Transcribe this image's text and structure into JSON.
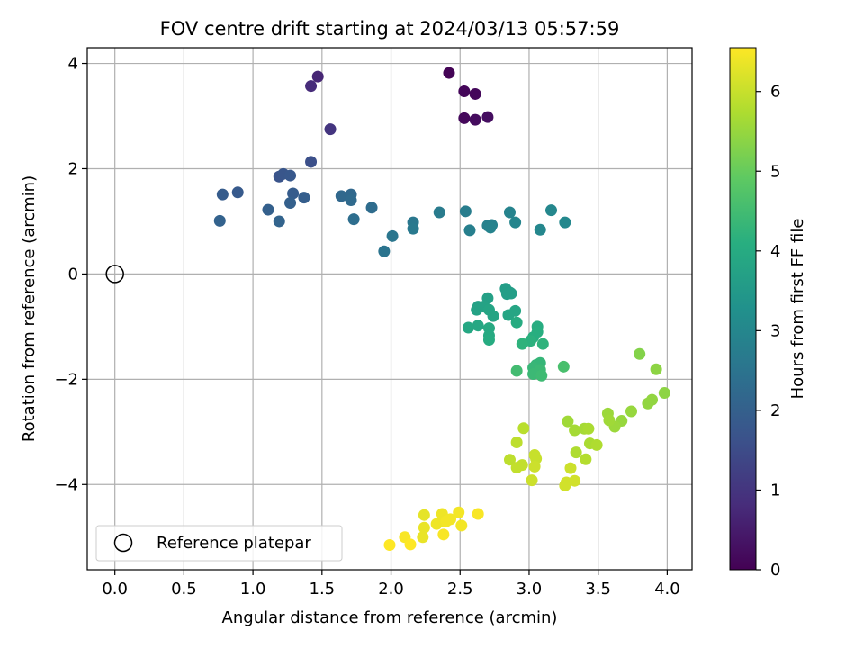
{
  "chart_data": {
    "type": "scatter",
    "title": "FOV centre drift starting at 2024/03/13 05:57:59",
    "xlabel": "Angular distance from reference (arcmin)",
    "ylabel": "Rotation from reference (arcmin)",
    "xlim": [
      -0.2,
      4.18
    ],
    "ylim": [
      -5.62,
      4.3
    ],
    "xticks": [
      0.0,
      0.5,
      1.0,
      1.5,
      2.0,
      2.5,
      3.0,
      3.5,
      4.0
    ],
    "xtick_labels": [
      "0.0",
      "0.5",
      "1.0",
      "1.5",
      "2.0",
      "2.5",
      "3.0",
      "3.5",
      "4.0"
    ],
    "yticks": [
      -4,
      -2,
      0,
      2,
      4
    ],
    "ytick_labels": [
      "−4",
      "−2",
      "0",
      "2",
      "4"
    ],
    "grid": true,
    "legend": {
      "placement": "lower-left",
      "entries": [
        "Reference platepar"
      ]
    },
    "reference_point": {
      "x": 0.0,
      "y": 0.0
    },
    "colorbar": {
      "label": "Hours from first FF file",
      "range": [
        0,
        6.55
      ],
      "ticks": [
        0,
        1,
        2,
        3,
        4,
        5,
        6
      ],
      "colormap": "viridis"
    },
    "points": [
      {
        "x": 2.42,
        "y": 3.82,
        "c": 0.05
      },
      {
        "x": 2.53,
        "y": 3.47,
        "c": 0.1
      },
      {
        "x": 2.61,
        "y": 3.42,
        "c": 0.12
      },
      {
        "x": 2.53,
        "y": 2.96,
        "c": 0.15
      },
      {
        "x": 2.61,
        "y": 2.93,
        "c": 0.2
      },
      {
        "x": 2.7,
        "y": 2.98,
        "c": 0.25
      },
      {
        "x": 1.47,
        "y": 3.75,
        "c": 0.7
      },
      {
        "x": 1.42,
        "y": 3.57,
        "c": 0.8
      },
      {
        "x": 1.56,
        "y": 2.75,
        "c": 1.0
      },
      {
        "x": 1.42,
        "y": 2.13,
        "c": 1.6
      },
      {
        "x": 1.19,
        "y": 1.85,
        "c": 1.7
      },
      {
        "x": 1.22,
        "y": 1.9,
        "c": 1.75
      },
      {
        "x": 1.27,
        "y": 1.87,
        "c": 1.8
      },
      {
        "x": 0.89,
        "y": 1.55,
        "c": 1.85
      },
      {
        "x": 0.78,
        "y": 1.51,
        "c": 1.9
      },
      {
        "x": 1.29,
        "y": 1.53,
        "c": 1.9
      },
      {
        "x": 1.37,
        "y": 1.45,
        "c": 1.95
      },
      {
        "x": 1.27,
        "y": 1.35,
        "c": 2.0
      },
      {
        "x": 1.11,
        "y": 1.22,
        "c": 2.0
      },
      {
        "x": 0.76,
        "y": 1.01,
        "c": 2.05
      },
      {
        "x": 1.19,
        "y": 1.0,
        "c": 2.1
      },
      {
        "x": 1.64,
        "y": 1.48,
        "c": 2.2
      },
      {
        "x": 1.71,
        "y": 1.51,
        "c": 2.2
      },
      {
        "x": 1.71,
        "y": 1.4,
        "c": 2.25
      },
      {
        "x": 1.86,
        "y": 1.26,
        "c": 2.3
      },
      {
        "x": 1.73,
        "y": 1.04,
        "c": 2.35
      },
      {
        "x": 1.95,
        "y": 0.43,
        "c": 2.5
      },
      {
        "x": 2.01,
        "y": 0.72,
        "c": 2.55
      },
      {
        "x": 2.16,
        "y": 0.98,
        "c": 2.6
      },
      {
        "x": 2.16,
        "y": 0.86,
        "c": 2.65
      },
      {
        "x": 2.35,
        "y": 1.17,
        "c": 2.7
      },
      {
        "x": 2.54,
        "y": 1.19,
        "c": 2.75
      },
      {
        "x": 2.57,
        "y": 0.83,
        "c": 2.8
      },
      {
        "x": 2.7,
        "y": 0.92,
        "c": 2.85
      },
      {
        "x": 2.73,
        "y": 0.93,
        "c": 2.85
      },
      {
        "x": 2.72,
        "y": 0.88,
        "c": 2.9
      },
      {
        "x": 2.86,
        "y": 1.17,
        "c": 2.9
      },
      {
        "x": 2.9,
        "y": 0.98,
        "c": 2.95
      },
      {
        "x": 3.08,
        "y": 0.84,
        "c": 3.0
      },
      {
        "x": 3.16,
        "y": 1.21,
        "c": 3.0
      },
      {
        "x": 3.26,
        "y": 0.98,
        "c": 3.05
      },
      {
        "x": 2.83,
        "y": -0.28,
        "c": 3.6
      },
      {
        "x": 2.86,
        "y": -0.35,
        "c": 3.6
      },
      {
        "x": 2.84,
        "y": -0.38,
        "c": 3.65
      },
      {
        "x": 2.87,
        "y": -0.37,
        "c": 3.65
      },
      {
        "x": 2.7,
        "y": -0.46,
        "c": 3.7
      },
      {
        "x": 2.63,
        "y": -0.62,
        "c": 3.7
      },
      {
        "x": 2.62,
        "y": -0.68,
        "c": 3.75
      },
      {
        "x": 2.67,
        "y": -0.62,
        "c": 3.75
      },
      {
        "x": 2.71,
        "y": -0.68,
        "c": 3.8
      },
      {
        "x": 2.74,
        "y": -0.8,
        "c": 3.8
      },
      {
        "x": 2.85,
        "y": -0.78,
        "c": 3.85
      },
      {
        "x": 2.9,
        "y": -0.7,
        "c": 3.85
      },
      {
        "x": 2.56,
        "y": -1.02,
        "c": 3.9
      },
      {
        "x": 2.63,
        "y": -0.98,
        "c": 3.9
      },
      {
        "x": 2.71,
        "y": -1.03,
        "c": 3.95
      },
      {
        "x": 2.71,
        "y": -1.17,
        "c": 3.95
      },
      {
        "x": 2.71,
        "y": -1.25,
        "c": 4.0
      },
      {
        "x": 2.91,
        "y": -0.92,
        "c": 4.0
      },
      {
        "x": 3.06,
        "y": -1.0,
        "c": 4.05
      },
      {
        "x": 3.06,
        "y": -1.1,
        "c": 4.1
      },
      {
        "x": 3.03,
        "y": -1.2,
        "c": 4.1
      },
      {
        "x": 3.01,
        "y": -1.27,
        "c": 4.15
      },
      {
        "x": 3.1,
        "y": -1.33,
        "c": 4.2
      },
      {
        "x": 2.95,
        "y": -1.33,
        "c": 4.2
      },
      {
        "x": 3.05,
        "y": -1.73,
        "c": 4.3
      },
      {
        "x": 3.08,
        "y": -1.69,
        "c": 4.3
      },
      {
        "x": 3.03,
        "y": -1.78,
        "c": 4.35
      },
      {
        "x": 3.08,
        "y": -1.82,
        "c": 4.4
      },
      {
        "x": 3.03,
        "y": -1.9,
        "c": 4.4
      },
      {
        "x": 3.09,
        "y": -1.93,
        "c": 4.45
      },
      {
        "x": 2.91,
        "y": -1.84,
        "c": 4.5
      },
      {
        "x": 3.25,
        "y": -1.76,
        "c": 4.6
      },
      {
        "x": 3.8,
        "y": -1.52,
        "c": 5.3
      },
      {
        "x": 3.92,
        "y": -1.81,
        "c": 5.4
      },
      {
        "x": 3.98,
        "y": -2.26,
        "c": 5.4
      },
      {
        "x": 3.89,
        "y": -2.39,
        "c": 5.45
      },
      {
        "x": 3.86,
        "y": -2.46,
        "c": 5.45
      },
      {
        "x": 3.74,
        "y": -2.61,
        "c": 5.5
      },
      {
        "x": 3.67,
        "y": -2.79,
        "c": 5.5
      },
      {
        "x": 3.62,
        "y": -2.9,
        "c": 5.55
      },
      {
        "x": 3.57,
        "y": -2.65,
        "c": 5.55
      },
      {
        "x": 3.58,
        "y": -2.78,
        "c": 5.6
      },
      {
        "x": 3.28,
        "y": -2.8,
        "c": 5.6
      },
      {
        "x": 3.33,
        "y": -2.97,
        "c": 5.65
      },
      {
        "x": 3.4,
        "y": -2.94,
        "c": 5.65
      },
      {
        "x": 3.43,
        "y": -2.94,
        "c": 5.7
      },
      {
        "x": 3.44,
        "y": -3.22,
        "c": 5.7
      },
      {
        "x": 3.49,
        "y": -3.25,
        "c": 5.75
      },
      {
        "x": 3.34,
        "y": -3.39,
        "c": 5.75
      },
      {
        "x": 3.41,
        "y": -3.52,
        "c": 5.8
      },
      {
        "x": 2.96,
        "y": -2.93,
        "c": 5.85
      },
      {
        "x": 2.91,
        "y": -3.2,
        "c": 5.9
      },
      {
        "x": 2.86,
        "y": -3.53,
        "c": 5.9
      },
      {
        "x": 2.91,
        "y": -3.68,
        "c": 5.95
      },
      {
        "x": 2.95,
        "y": -3.63,
        "c": 5.95
      },
      {
        "x": 3.04,
        "y": -3.44,
        "c": 6.0
      },
      {
        "x": 3.05,
        "y": -3.51,
        "c": 6.0
      },
      {
        "x": 3.04,
        "y": -3.66,
        "c": 6.05
      },
      {
        "x": 3.02,
        "y": -3.92,
        "c": 6.05
      },
      {
        "x": 3.3,
        "y": -3.69,
        "c": 6.05
      },
      {
        "x": 3.27,
        "y": -3.96,
        "c": 6.1
      },
      {
        "x": 3.26,
        "y": -4.02,
        "c": 6.1
      },
      {
        "x": 3.33,
        "y": -3.93,
        "c": 6.1
      },
      {
        "x": 2.24,
        "y": -4.58,
        "c": 6.3
      },
      {
        "x": 2.24,
        "y": -4.82,
        "c": 6.35
      },
      {
        "x": 2.23,
        "y": -5.0,
        "c": 6.35
      },
      {
        "x": 2.33,
        "y": -4.75,
        "c": 6.4
      },
      {
        "x": 2.37,
        "y": -4.56,
        "c": 6.4
      },
      {
        "x": 2.38,
        "y": -4.7,
        "c": 6.4
      },
      {
        "x": 2.4,
        "y": -4.7,
        "c": 6.45
      },
      {
        "x": 2.43,
        "y": -4.66,
        "c": 6.45
      },
      {
        "x": 2.49,
        "y": -4.53,
        "c": 6.45
      },
      {
        "x": 2.51,
        "y": -4.78,
        "c": 6.45
      },
      {
        "x": 2.63,
        "y": -4.56,
        "c": 6.5
      },
      {
        "x": 2.38,
        "y": -4.95,
        "c": 6.5
      },
      {
        "x": 2.1,
        "y": -5.0,
        "c": 6.5
      },
      {
        "x": 2.14,
        "y": -5.14,
        "c": 6.55
      },
      {
        "x": 1.99,
        "y": -5.15,
        "c": 6.55
      }
    ]
  }
}
